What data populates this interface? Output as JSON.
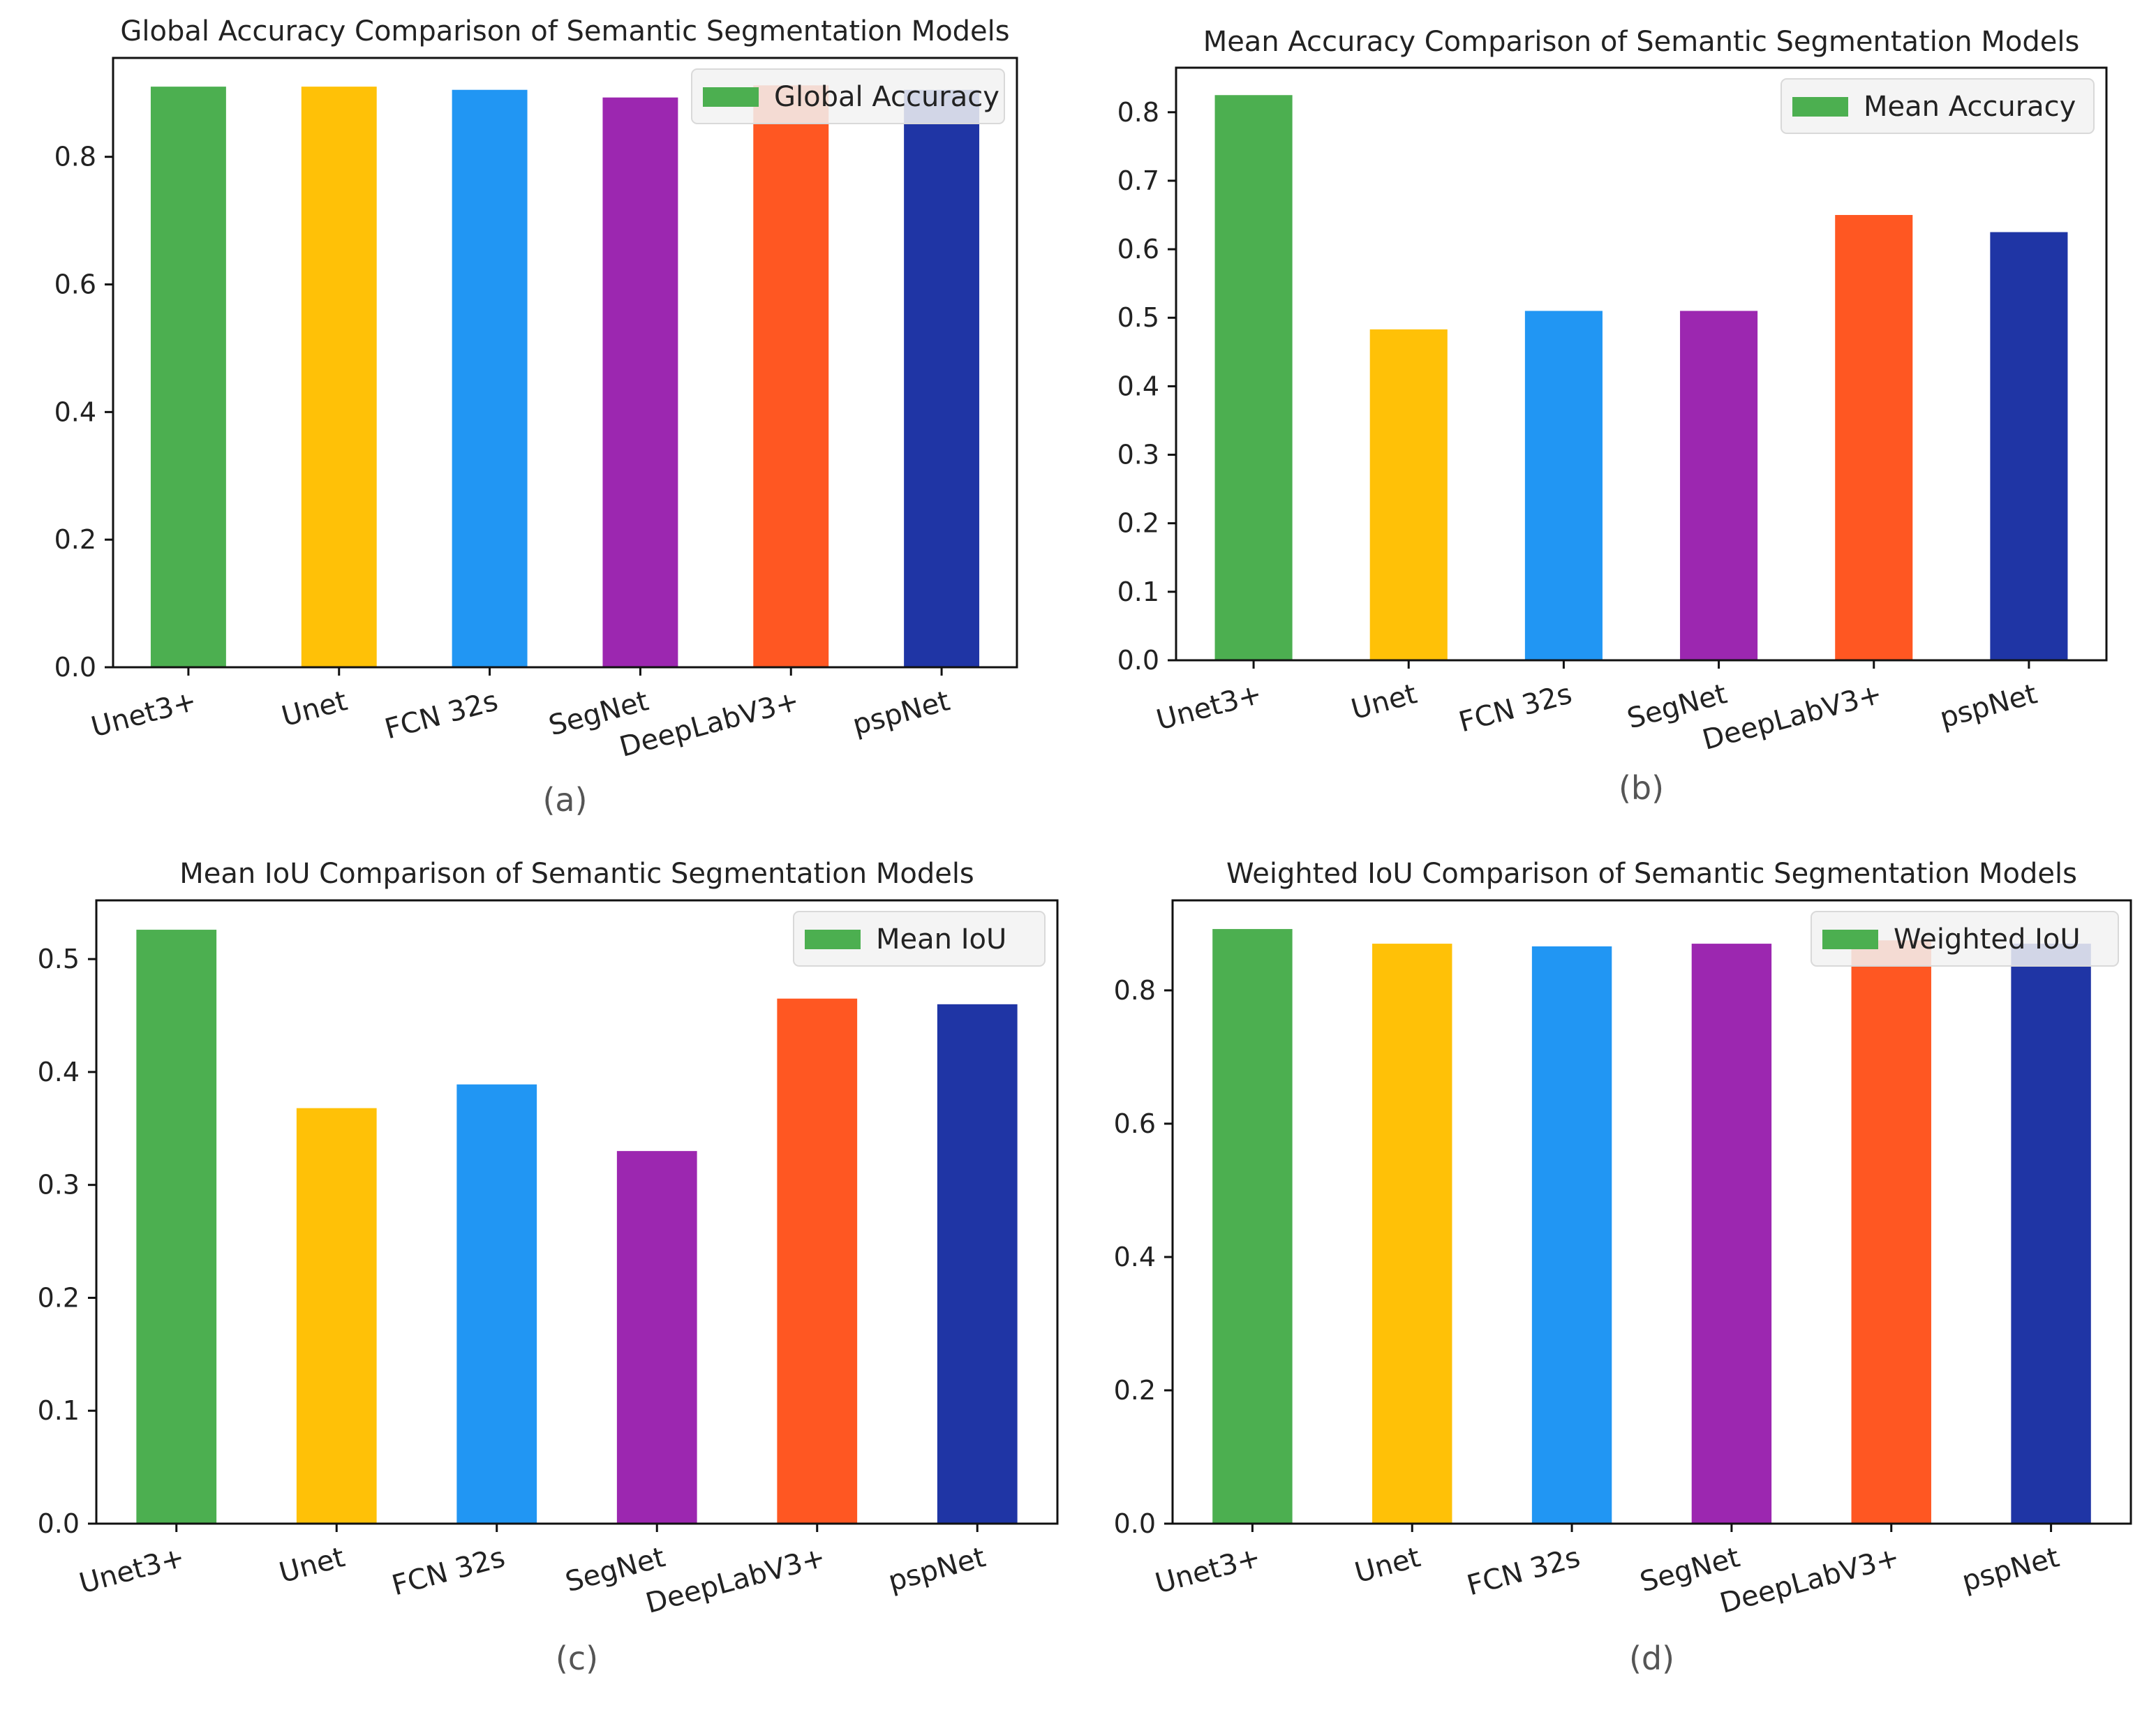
{
  "figure": {
    "categories": [
      "Unet3+",
      "Unet",
      "FCN 32s",
      "SegNet",
      "DeepLabV3+",
      "pspNet"
    ],
    "colors": [
      "#4caf50",
      "#ffc107",
      "#2196f3",
      "#9c27b0",
      "#ff5722",
      "#1f35a5"
    ]
  },
  "chart_data": [
    {
      "type": "bar",
      "title": "Global Accuracy Comparison of Semantic Segmentation Models",
      "caption": "(a)",
      "legend": "Global Accuracy",
      "legend_position": "top-right",
      "categories": [
        "Unet3+",
        "Unet",
        "FCN 32s",
        "SegNet",
        "DeepLabV3+",
        "pspNet"
      ],
      "values": [
        0.91,
        0.91,
        0.905,
        0.893,
        0.912,
        0.905
      ],
      "ylim": [
        0,
        0.955
      ],
      "yticks": [
        0.0,
        0.2,
        0.4,
        0.6,
        0.8
      ],
      "ytick_labels": [
        "0.0",
        "0.2",
        "0.4",
        "0.6",
        "0.8"
      ],
      "xlabel": "",
      "ylabel": ""
    },
    {
      "type": "bar",
      "title": "Mean Accuracy Comparison of Semantic Segmentation Models",
      "caption": "(b)",
      "legend": "Mean Accuracy",
      "legend_position": "top-right",
      "categories": [
        "Unet3+",
        "Unet",
        "FCN 32s",
        "SegNet",
        "DeepLabV3+",
        "pspNet"
      ],
      "values": [
        0.825,
        0.483,
        0.51,
        0.51,
        0.65,
        0.625
      ],
      "ylim": [
        0,
        0.865
      ],
      "yticks": [
        0.0,
        0.1,
        0.2,
        0.3,
        0.4,
        0.5,
        0.6,
        0.7,
        0.8
      ],
      "ytick_labels": [
        "0.0",
        "0.1",
        "0.2",
        "0.3",
        "0.4",
        "0.5",
        "0.6",
        "0.7",
        "0.8"
      ],
      "xlabel": "",
      "ylabel": ""
    },
    {
      "type": "bar",
      "title": "Mean IoU Comparison of Semantic Segmentation Models",
      "caption": "(c)",
      "legend": "Mean IoU",
      "legend_position": "top-right",
      "categories": [
        "Unet3+",
        "Unet",
        "FCN 32s",
        "SegNet",
        "DeepLabV3+",
        "pspNet"
      ],
      "values": [
        0.526,
        0.368,
        0.389,
        0.33,
        0.465,
        0.46
      ],
      "ylim": [
        0,
        0.552
      ],
      "yticks": [
        0.0,
        0.1,
        0.2,
        0.3,
        0.4,
        0.5
      ],
      "ytick_labels": [
        "0.0",
        "0.1",
        "0.2",
        "0.3",
        "0.4",
        "0.5"
      ],
      "xlabel": "",
      "ylabel": ""
    },
    {
      "type": "bar",
      "title": "Weighted IoU Comparison of Semantic Segmentation Models",
      "caption": "(d)",
      "legend": "Weighted IoU",
      "legend_position": "top-right",
      "categories": [
        "Unet3+",
        "Unet",
        "FCN 32s",
        "SegNet",
        "DeepLabV3+",
        "pspNet"
      ],
      "values": [
        0.892,
        0.87,
        0.866,
        0.87,
        0.875,
        0.87
      ],
      "ylim": [
        0,
        0.935
      ],
      "yticks": [
        0.0,
        0.2,
        0.4,
        0.6,
        0.8
      ],
      "ytick_labels": [
        "0.0",
        "0.2",
        "0.4",
        "0.6",
        "0.8"
      ],
      "xlabel": "",
      "ylabel": ""
    }
  ]
}
